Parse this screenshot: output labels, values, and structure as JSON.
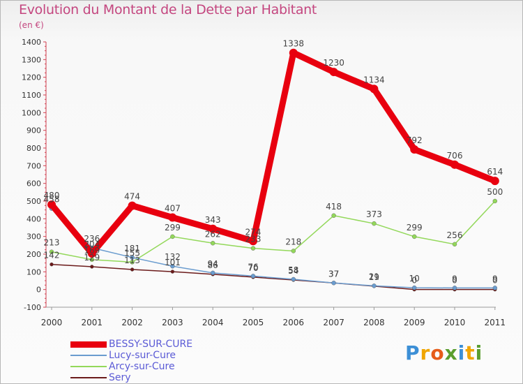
{
  "header": {
    "title": "Evolution du Montant de la Dette par Habitant",
    "unit": "(en €)"
  },
  "logo": {
    "text": "Proxiti",
    "letters": [
      {
        "ch": "P",
        "color": "#3c8fd6"
      },
      {
        "ch": "r",
        "color": "#f0a500"
      },
      {
        "ch": "o",
        "color": "#e65c1a"
      },
      {
        "ch": "x",
        "color": "#5a9e2f"
      },
      {
        "ch": "i",
        "color": "#3c8fd6"
      },
      {
        "ch": "t",
        "color": "#f0a500"
      },
      {
        "ch": "i",
        "color": "#5a9e2f"
      }
    ]
  },
  "chart_data": {
    "type": "line",
    "title": "Evolution du Montant de la Dette par Habitant",
    "ylabel": "(en €)",
    "xlabel": "",
    "x": [
      "2000",
      "2001",
      "2002",
      "2003",
      "2004",
      "2005",
      "2006",
      "2007",
      "2008",
      "2009",
      "2010",
      "2011"
    ],
    "ylim": [
      -100,
      1400
    ],
    "yticks": [
      -100,
      0,
      100,
      200,
      300,
      400,
      500,
      600,
      700,
      800,
      900,
      1000,
      1100,
      1200,
      1300,
      1400
    ],
    "grid": false,
    "legend": "bottom-left",
    "series": [
      {
        "name": "Sery",
        "color": "#6b1a1a",
        "values": [
          142,
          129,
          113,
          101,
          86,
          70,
          54,
          37,
          19,
          0,
          0,
          0
        ],
        "labels": [
          "142",
          "129",
          "113",
          "101",
          "86",
          "70",
          "54",
          "37",
          "19",
          "0",
          "0",
          "0"
        ]
      },
      {
        "name": "Arcy-sur-Cure",
        "color": "#93d85a",
        "values": [
          213,
          169,
          155,
          299,
          262,
          233,
          218,
          418,
          373,
          299,
          256,
          500
        ],
        "labels": [
          "213",
          "169",
          "155",
          "299",
          "262",
          "233",
          "218",
          "418",
          "373",
          "299",
          "256",
          "500"
        ]
      },
      {
        "name": "Lucy-sur-Cure",
        "color": "#6a9ccf",
        "values": [
          458,
          236,
          181,
          132,
          94,
          76,
          58,
          37,
          21,
          10,
          9,
          9
        ],
        "labels": [
          "458",
          "236",
          "181",
          "132",
          "94",
          "76",
          "58",
          "37",
          "21",
          "10",
          "9",
          "9"
        ]
      },
      {
        "name": "BESSY-SUR-CURE",
        "color": "#e8000f",
        "values": [
          480,
          204,
          474,
          407,
          343,
          274,
          1338,
          1230,
          1134,
          792,
          706,
          614
        ],
        "labels": [
          "480",
          "204",
          "474",
          "407",
          "343",
          "274",
          "1338",
          "1230",
          "1134",
          "792",
          "706",
          "614"
        ]
      }
    ]
  }
}
